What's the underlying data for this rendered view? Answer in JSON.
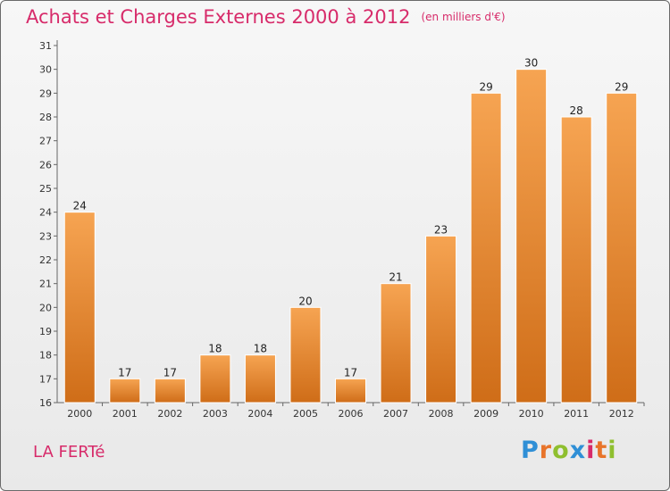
{
  "chart_data": {
    "type": "bar",
    "title": "Achats et Charges Externes 2000 à 2012",
    "subtitle": "(en milliers d'€)",
    "categories": [
      "2000",
      "2001",
      "2002",
      "2003",
      "2004",
      "2005",
      "2006",
      "2007",
      "2008",
      "2009",
      "2010",
      "2011",
      "2012"
    ],
    "values": [
      24,
      17,
      17,
      18,
      18,
      20,
      17,
      21,
      23,
      29,
      30,
      28,
      29
    ],
    "ylim": [
      16,
      31
    ],
    "yticks": [
      16,
      17,
      18,
      19,
      20,
      21,
      22,
      23,
      24,
      25,
      26,
      27,
      28,
      29,
      30,
      31
    ],
    "grid": false,
    "bar_color": "#e8842a"
  },
  "footer": {
    "place": "LA FERTé",
    "brand": "Proxiti"
  }
}
